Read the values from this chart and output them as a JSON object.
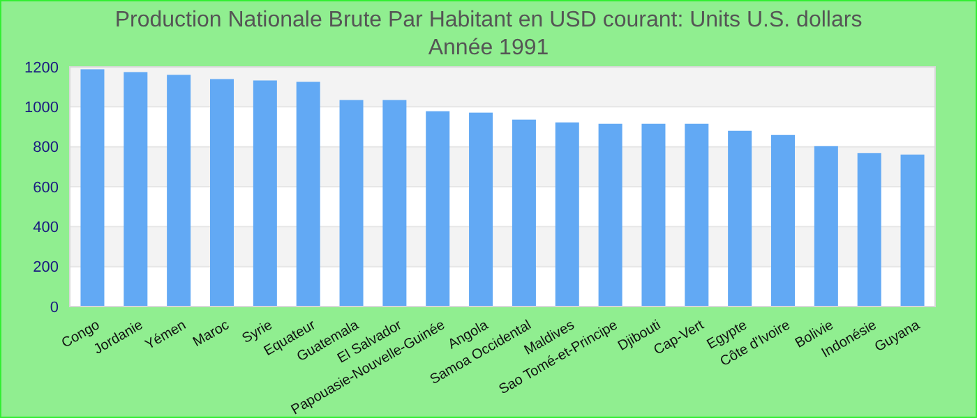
{
  "chart_data": {
    "type": "bar",
    "title": "Production Nationale Brute Par Habitant en USD courant: Units U.S. dollars",
    "subtitle": "Année 1991",
    "categories": [
      "Congo",
      "Jordanie",
      "Yémen",
      "Maroc",
      "Syrie",
      "Equateur",
      "Guatemala",
      "El Salvador",
      "Papouasie-Nouvelle-Guinée",
      "Angola",
      "Samoa Occidental",
      "Maldives",
      "Sao Tomé-et-Principe",
      "Djibouti",
      "Cap-Vert",
      "Egypte",
      "Côte d'Ivoire",
      "Bolivie",
      "Indonésie",
      "Guyana"
    ],
    "values": [
      1188,
      1174,
      1160,
      1139,
      1132,
      1125,
      1034,
      1034,
      978,
      971,
      936,
      922,
      915,
      915,
      915,
      880,
      859,
      803,
      768,
      761
    ],
    "color": "#62a9f4",
    "ylim": [
      0,
      1200
    ],
    "yticks": [
      0,
      200,
      400,
      600,
      800,
      1000,
      1200
    ],
    "grid": "y"
  }
}
